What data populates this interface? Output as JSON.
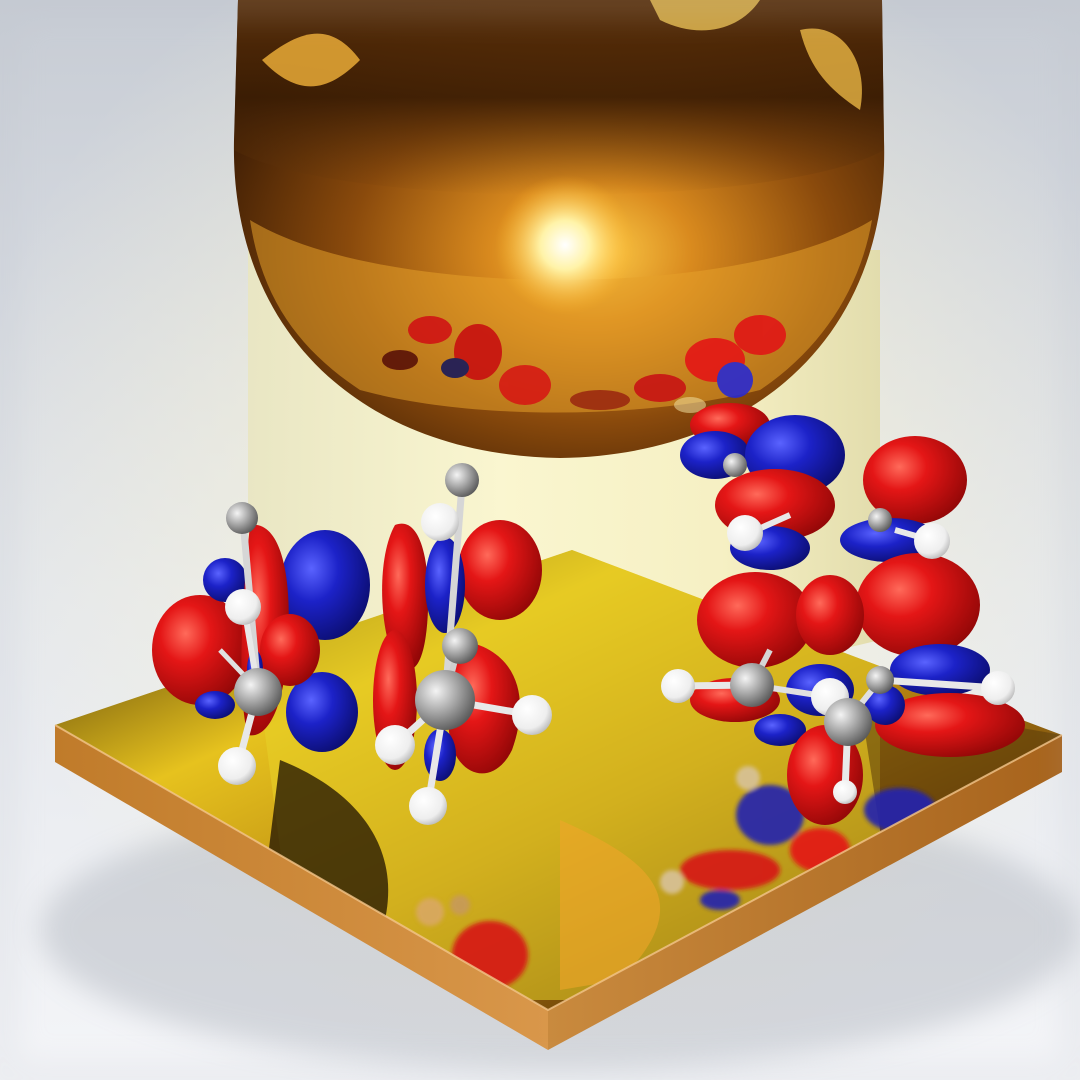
{
  "scene": {
    "description_labels": [],
    "colors": {
      "background_top": "#c9ced6",
      "background_bottom": "#f2f4f7",
      "gold_bright": "#ffd45a",
      "gold_mid": "#c77c1a",
      "gold_dark": "#3a1c04",
      "light_column": "#f3efc0",
      "orbital_positive": "#e21a1a",
      "orbital_negative": "#1c22c8",
      "carbon_atom": "#b8b8b8",
      "hydrogen_atom": "#ffffff",
      "bond": "#d9d9d9"
    },
    "objects": [
      "gold-sphere-tip",
      "gold-substrate-plate",
      "light-column",
      "molecule-left-orbitals",
      "molecule-center-orbitals",
      "molecule-right-bridge-orbitals",
      "molecule-reflections"
    ]
  }
}
